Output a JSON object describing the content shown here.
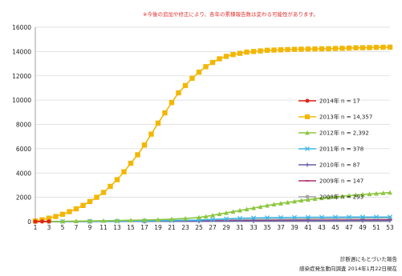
{
  "note": "※今後の追加や修正により、各年の累積報告数は変わる可能性があります。",
  "footer": {
    "line1": "診断週にもとづいた報告",
    "line2": "感染症発生動向調査 2014年1月22日現在"
  },
  "chart_data": {
    "type": "line",
    "title": "",
    "xlabel": "",
    "ylabel": "",
    "ylim": [
      0,
      16000
    ],
    "yticks": [
      0,
      2000,
      4000,
      6000,
      8000,
      10000,
      12000,
      14000,
      16000
    ],
    "xlim": [
      1,
      53
    ],
    "xticks": [
      1,
      3,
      5,
      7,
      9,
      11,
      13,
      15,
      17,
      19,
      21,
      23,
      25,
      27,
      29,
      31,
      33,
      35,
      37,
      39,
      41,
      43,
      45,
      47,
      49,
      51,
      53
    ],
    "grid": true,
    "legend_position": "right",
    "series": [
      {
        "name": "2014年 n = 17",
        "color": "#e0241b",
        "marker": "circle",
        "x": [
          1,
          2,
          3
        ],
        "values": [
          5,
          12,
          17
        ]
      },
      {
        "name": "2013年 n = 14,357",
        "color": "#f2b705",
        "marker": "square",
        "x": [
          1,
          2,
          3,
          4,
          5,
          6,
          7,
          8,
          9,
          10,
          11,
          12,
          13,
          14,
          15,
          16,
          17,
          18,
          19,
          20,
          21,
          22,
          23,
          24,
          25,
          26,
          27,
          28,
          29,
          30,
          31,
          32,
          33,
          34,
          35,
          36,
          37,
          38,
          39,
          40,
          41,
          42,
          43,
          44,
          45,
          46,
          47,
          48,
          49,
          50,
          51,
          52,
          53
        ],
        "values": [
          50,
          150,
          280,
          420,
          600,
          820,
          1050,
          1330,
          1650,
          2000,
          2400,
          2900,
          3450,
          4100,
          4800,
          5500,
          6300,
          7200,
          8100,
          8950,
          9800,
          10600,
          11200,
          11800,
          12300,
          12750,
          13100,
          13400,
          13600,
          13750,
          13850,
          13950,
          14000,
          14050,
          14100,
          14120,
          14140,
          14160,
          14180,
          14190,
          14200,
          14210,
          14220,
          14230,
          14250,
          14260,
          14280,
          14300,
          14310,
          14320,
          14340,
          14350,
          14357
        ]
      },
      {
        "name": "2012年 n = 2,392",
        "color": "#8cc63f",
        "marker": "triangle",
        "x": [
          1,
          3,
          5,
          7,
          9,
          11,
          13,
          15,
          17,
          19,
          21,
          23,
          25,
          26,
          27,
          28,
          29,
          30,
          31,
          32,
          33,
          34,
          35,
          36,
          37,
          38,
          39,
          40,
          41,
          42,
          43,
          44,
          45,
          46,
          47,
          48,
          49,
          50,
          51,
          52,
          53
        ],
        "values": [
          5,
          15,
          25,
          40,
          55,
          70,
          90,
          110,
          130,
          160,
          200,
          260,
          340,
          420,
          520,
          620,
          720,
          820,
          920,
          1020,
          1120,
          1220,
          1320,
          1420,
          1500,
          1580,
          1660,
          1740,
          1810,
          1880,
          1940,
          1990,
          2040,
          2090,
          2140,
          2190,
          2230,
          2270,
          2310,
          2350,
          2392
        ]
      },
      {
        "name": "2011年 n = 378",
        "color": "#3fb6e6",
        "marker": "x",
        "x": [
          1,
          5,
          9,
          13,
          17,
          21,
          25,
          27,
          29,
          31,
          33,
          35,
          37,
          39,
          41,
          43,
          45,
          47,
          49,
          51,
          53
        ],
        "values": [
          2,
          10,
          20,
          35,
          55,
          85,
          130,
          180,
          230,
          270,
          300,
          320,
          335,
          345,
          355,
          362,
          368,
          372,
          375,
          377,
          378
        ]
      },
      {
        "name": "2010年 n = 87",
        "color": "#6a5fa8",
        "marker": "plus",
        "x": [
          1,
          9,
          17,
          25,
          33,
          41,
          49,
          53
        ],
        "values": [
          1,
          8,
          18,
          30,
          50,
          70,
          84,
          87
        ]
      },
      {
        "name": "2009年 n = 147",
        "color": "#b02f6b",
        "marker": "dash",
        "x": [
          1,
          9,
          17,
          25,
          33,
          41,
          49,
          53
        ],
        "values": [
          1,
          12,
          30,
          55,
          85,
          115,
          140,
          147
        ]
      },
      {
        "name": "2008年 n = 293",
        "color": "#a6a6a6",
        "marker": "circle",
        "x": [
          1,
          9,
          17,
          25,
          33,
          41,
          49,
          53
        ],
        "values": [
          2,
          25,
          60,
          110,
          170,
          230,
          280,
          293
        ]
      }
    ]
  }
}
